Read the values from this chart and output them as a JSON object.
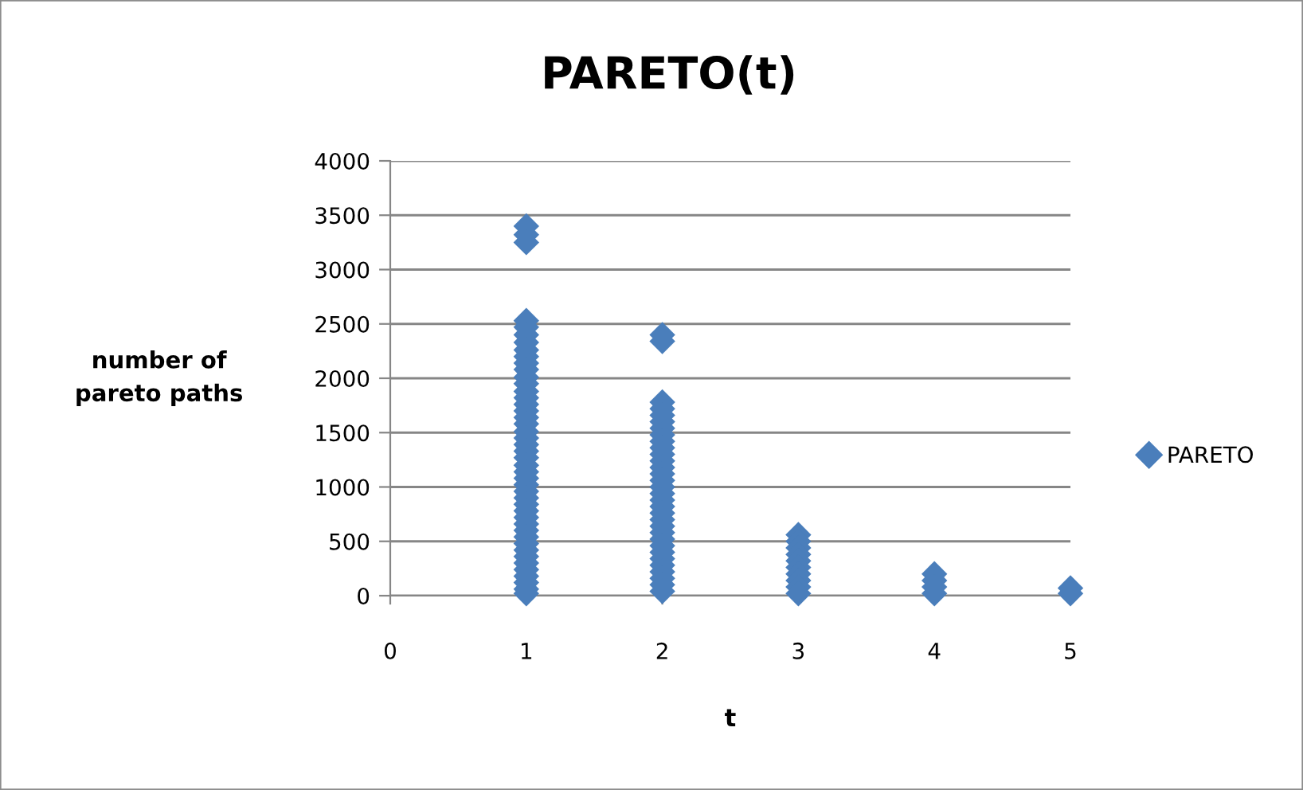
{
  "chart_data": {
    "type": "scatter",
    "title": "PARETO(t)",
    "xlabel": "t",
    "ylabel": "number of\npareto paths",
    "xlim": [
      0,
      5
    ],
    "xticks": [
      0,
      1,
      2,
      3,
      4,
      5
    ],
    "ylim": [
      0,
      4000
    ],
    "yticks": [
      0,
      500,
      1000,
      1500,
      2000,
      2500,
      3000,
      3500,
      4000
    ],
    "grid": "y",
    "legend": "right",
    "marker": "diamond",
    "series": [
      {
        "name": "PARETO",
        "color": "#4a7ebb",
        "x": [
          1,
          1,
          1,
          1,
          1,
          1,
          1,
          1,
          1,
          1,
          1,
          1,
          1,
          1,
          1,
          1,
          1,
          1,
          1,
          1,
          1,
          1,
          1,
          1,
          1,
          1,
          1,
          1,
          1,
          1,
          1,
          1,
          1,
          1,
          1,
          1,
          1,
          1,
          1,
          1,
          1,
          1,
          1,
          1,
          1,
          2,
          2,
          2,
          2,
          2,
          2,
          2,
          2,
          2,
          2,
          2,
          2,
          2,
          2,
          2,
          2,
          2,
          2,
          2,
          2,
          2,
          2,
          2,
          2,
          2,
          2,
          2,
          2,
          2,
          2,
          2,
          2,
          3,
          3,
          3,
          3,
          3,
          3,
          3,
          3,
          3,
          3,
          4,
          4,
          4,
          4,
          5,
          5
        ],
        "values": [
          3400,
          3320,
          3250,
          2530,
          2470,
          2400,
          2330,
          2260,
          2200,
          2140,
          2080,
          2010,
          1950,
          1880,
          1820,
          1760,
          1700,
          1640,
          1580,
          1510,
          1450,
          1390,
          1330,
          1270,
          1200,
          1140,
          1080,
          1020,
          960,
          900,
          840,
          780,
          720,
          660,
          600,
          540,
          480,
          420,
          360,
          300,
          240,
          180,
          120,
          60,
          20,
          2400,
          2340,
          1780,
          1720,
          1660,
          1600,
          1540,
          1480,
          1420,
          1360,
          1300,
          1240,
          1180,
          1120,
          1060,
          1000,
          940,
          880,
          820,
          760,
          700,
          640,
          580,
          520,
          460,
          400,
          340,
          280,
          220,
          160,
          100,
          40,
          560,
          500,
          440,
          380,
          320,
          260,
          200,
          140,
          80,
          20,
          200,
          140,
          80,
          20,
          70,
          20
        ]
      }
    ]
  }
}
